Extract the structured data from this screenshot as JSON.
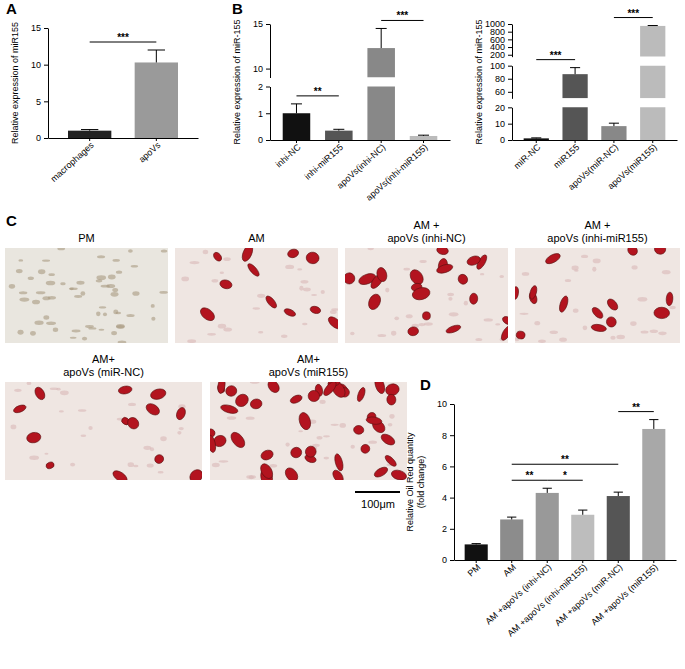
{
  "panels": [
    "A",
    "B",
    "C",
    "D"
  ],
  "chart_data": [
    {
      "type": "bar",
      "ylabel": "Relative expression of miR155",
      "categories": [
        "macrophages",
        "apoVs"
      ],
      "values": [
        1.0,
        10.3
      ],
      "errors": [
        0.15,
        1.7
      ],
      "colors": [
        "#222222",
        "#9a9a9a"
      ],
      "ylim": [
        0,
        15
      ],
      "yticks": [
        0,
        5,
        10,
        15
      ],
      "significance": [
        {
          "between": [
            "macrophages",
            "apoVs"
          ],
          "label": "***"
        }
      ]
    },
    {
      "type": "bar",
      "ylabel": "Relative expression of miR-155",
      "categories": [
        "inhi-NC",
        "inhi-miR155",
        "apoVs(inhi-NC)",
        "apoVs(inhi-miR155)"
      ],
      "values": [
        1.0,
        0.35,
        12.3,
        0.15
      ],
      "errors": [
        0.35,
        0.05,
        2.2,
        0.03
      ],
      "colors": [
        "#111111",
        "#555555",
        "#888888",
        "#bbbbbb"
      ],
      "ylim": [
        0,
        15
      ],
      "yticks": [
        0,
        1,
        2,
        10,
        15
      ],
      "axis_breaks": [
        [
          2,
          9
        ]
      ],
      "significance": [
        {
          "between": [
            "inhi-NC",
            "inhi-miR155"
          ],
          "label": "**"
        },
        {
          "between": [
            "apoVs(inhi-NC)",
            "apoVs(inhi-miR155)"
          ],
          "label": "***"
        }
      ]
    },
    {
      "type": "bar",
      "ylabel": "Relative expression of miR-155",
      "categories": [
        "miR-NC",
        "miR155",
        "apoVs(miR-NC)",
        "apoVs(miR155)"
      ],
      "values": [
        1.0,
        87,
        8.5,
        950
      ],
      "errors": [
        0.3,
        10,
        1.8,
        10
      ],
      "colors": [
        "#111111",
        "#555555",
        "#888888",
        "#bbbbbb"
      ],
      "ylim": [
        0,
        1000
      ],
      "yticks": [
        0,
        10,
        20,
        60,
        80,
        100,
        200,
        400,
        600,
        800,
        1000
      ],
      "axis_breaks": [
        [
          20,
          50
        ],
        [
          100,
          150
        ]
      ],
      "significance": [
        {
          "between": [
            "miR-NC",
            "miR155"
          ],
          "label": "***"
        },
        {
          "between": [
            "apoVs(miR-NC)",
            "apoVs(miR155)"
          ],
          "label": "***"
        }
      ]
    },
    {
      "type": "bar",
      "ylabel": [
        "Relative Oil Red quantity",
        "(fold change)"
      ],
      "categories": [
        "PM",
        "AM",
        "AM +apoVs (inhi-NC)",
        "AM +apoVs (inhi-miR155)",
        "AM +apoVs (miR-NC)",
        "AM +apoVs (miR155)"
      ],
      "values": [
        1.0,
        2.6,
        4.3,
        2.9,
        4.1,
        8.4
      ],
      "errors": [
        0.05,
        0.15,
        0.3,
        0.3,
        0.25,
        0.6
      ],
      "colors": [
        "#111111",
        "#8c8c8c",
        "#999999",
        "#bdbdbd",
        "#555555",
        "#a8a8a8"
      ],
      "ylim": [
        0,
        10
      ],
      "yticks": [
        0,
        2,
        4,
        6,
        8,
        10
      ],
      "significance": [
        {
          "between": [
            "AM",
            "AM +apoVs (inhi-NC)"
          ],
          "label": "**"
        },
        {
          "between": [
            "AM +apoVs (inhi-NC)",
            "AM +apoVs (inhi-miR155)"
          ],
          "label": "*"
        },
        {
          "between": [
            "AM",
            "AM +apoVs (miR-NC)"
          ],
          "label": "**"
        },
        {
          "between": [
            "AM +apoVs (miR-NC)",
            "AM +apoVs (miR155)"
          ],
          "label": "**"
        }
      ]
    }
  ],
  "images": {
    "labels": [
      [
        "PM"
      ],
      [
        "AM"
      ],
      [
        "AM +",
        "apoVs (inhi-NC)"
      ],
      [
        "AM +",
        "apoVs (inhi-miR155)"
      ],
      [
        "AM+",
        "apoVs (miR-NC)"
      ],
      [
        "AM+",
        "apoVs (miR155)"
      ]
    ],
    "scale_bar": "100μm"
  }
}
